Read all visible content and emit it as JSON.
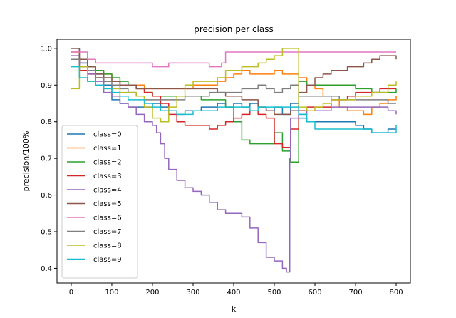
{
  "chart_data": {
    "type": "line",
    "title": "precision per class",
    "xlabel": "k",
    "ylabel": "precision/100%",
    "xlim": [
      -35,
      835
    ],
    "ylim": [
      0.36,
      1.025
    ],
    "xticks": [
      0,
      100,
      200,
      300,
      400,
      500,
      600,
      700,
      800
    ],
    "yticks": [
      0.4,
      0.5,
      0.6,
      0.7,
      0.8,
      0.9,
      1.0
    ],
    "xtick_labels": [
      "0",
      "100",
      "200",
      "300",
      "400",
      "500",
      "600",
      "700",
      "800"
    ],
    "ytick_labels": [
      "0.4",
      "0.5",
      "0.6",
      "0.7",
      "0.8",
      "0.9",
      "1.0"
    ],
    "grid": false,
    "legend_position": "center-left",
    "series": [
      {
        "name": "class=0",
        "color": "#1f77b4",
        "x": [
          0,
          20,
          40,
          60,
          80,
          100,
          120,
          140,
          160,
          180,
          200,
          220,
          240,
          260,
          280,
          300,
          320,
          340,
          360,
          380,
          400,
          420,
          440,
          460,
          480,
          500,
          520,
          540,
          560,
          580,
          600,
          620,
          640,
          660,
          680,
          700,
          720,
          740,
          760,
          780,
          800
        ],
        "y": [
          1.0,
          0.96,
          0.94,
          0.93,
          0.9,
          0.86,
          0.85,
          0.84,
          0.84,
          0.84,
          0.85,
          0.84,
          0.83,
          0.82,
          0.83,
          0.83,
          0.84,
          0.84,
          0.85,
          0.84,
          0.85,
          0.84,
          0.85,
          0.84,
          0.83,
          0.84,
          0.82,
          0.85,
          0.81,
          0.8,
          0.8,
          0.8,
          0.8,
          0.8,
          0.8,
          0.79,
          0.78,
          0.77,
          0.77,
          0.78,
          0.78
        ]
      },
      {
        "name": "class=1",
        "color": "#ff7f0e",
        "x": [
          0,
          20,
          40,
          60,
          80,
          100,
          120,
          140,
          160,
          180,
          200,
          220,
          240,
          260,
          280,
          300,
          320,
          340,
          360,
          380,
          400,
          420,
          440,
          460,
          480,
          500,
          520,
          540,
          560,
          580,
          600,
          620,
          640,
          660,
          680,
          700,
          720,
          740,
          760,
          780,
          800
        ],
        "y": [
          0.99,
          0.97,
          0.95,
          0.94,
          0.93,
          0.91,
          0.9,
          0.9,
          0.9,
          0.89,
          0.89,
          0.89,
          0.89,
          0.89,
          0.89,
          0.9,
          0.9,
          0.9,
          0.91,
          0.92,
          0.93,
          0.94,
          0.93,
          0.93,
          0.93,
          0.94,
          0.93,
          0.93,
          0.92,
          0.9,
          0.89,
          0.87,
          0.86,
          0.84,
          0.83,
          0.83,
          0.82,
          0.84,
          0.85,
          0.86,
          0.87
        ]
      },
      {
        "name": "class=2",
        "color": "#2ca02c",
        "x": [
          0,
          20,
          40,
          60,
          80,
          100,
          120,
          140,
          160,
          180,
          200,
          220,
          240,
          260,
          280,
          300,
          320,
          340,
          360,
          380,
          400,
          420,
          440,
          460,
          480,
          500,
          520,
          540,
          560,
          580,
          600,
          620,
          640,
          660,
          680,
          700,
          720,
          740,
          760,
          780,
          800
        ],
        "y": [
          0.97,
          0.95,
          0.95,
          0.94,
          0.93,
          0.92,
          0.91,
          0.9,
          0.89,
          0.88,
          0.87,
          0.87,
          0.87,
          0.87,
          0.87,
          0.87,
          0.86,
          0.86,
          0.86,
          0.84,
          0.8,
          0.75,
          0.74,
          0.74,
          0.74,
          0.77,
          0.72,
          0.69,
          0.91,
          0.9,
          0.9,
          0.9,
          0.9,
          0.9,
          0.9,
          0.89,
          0.89,
          0.88,
          0.88,
          0.88,
          0.89
        ]
      },
      {
        "name": "class=3",
        "color": "#d62728",
        "x": [
          0,
          20,
          40,
          60,
          80,
          100,
          120,
          140,
          160,
          180,
          200,
          220,
          240,
          260,
          280,
          300,
          320,
          340,
          360,
          380,
          400,
          420,
          440,
          460,
          480,
          500,
          520,
          540,
          560,
          580,
          600,
          620,
          640,
          660,
          680,
          700,
          720,
          740,
          760,
          780,
          800
        ],
        "y": [
          0.97,
          0.94,
          0.93,
          0.92,
          0.91,
          0.91,
          0.9,
          0.9,
          0.89,
          0.88,
          0.87,
          0.85,
          0.82,
          0.8,
          0.79,
          0.79,
          0.79,
          0.78,
          0.79,
          0.8,
          0.81,
          0.82,
          0.83,
          0.82,
          0.81,
          0.74,
          0.73,
          0.78,
          0.83,
          0.84,
          0.84,
          0.84,
          0.86,
          0.86,
          0.87,
          0.88,
          0.88,
          0.88,
          0.89,
          0.89,
          0.89
        ]
      },
      {
        "name": "class=4",
        "color": "#9467bd",
        "x": [
          0,
          20,
          40,
          60,
          80,
          100,
          120,
          140,
          160,
          180,
          200,
          210,
          220,
          230,
          240,
          260,
          280,
          300,
          320,
          340,
          360,
          380,
          400,
          420,
          440,
          460,
          480,
          500,
          520,
          530,
          536,
          538,
          540,
          560,
          580,
          600,
          620,
          640,
          660,
          680,
          700,
          720,
          740,
          760,
          780,
          800
        ],
        "y": [
          0.98,
          0.96,
          0.93,
          0.91,
          0.88,
          0.87,
          0.85,
          0.84,
          0.82,
          0.8,
          0.79,
          0.77,
          0.74,
          0.7,
          0.67,
          0.64,
          0.62,
          0.61,
          0.6,
          0.58,
          0.56,
          0.55,
          0.55,
          0.54,
          0.51,
          0.47,
          0.43,
          0.42,
          0.4,
          0.39,
          0.39,
          0.7,
          0.81,
          0.82,
          0.83,
          0.83,
          0.83,
          0.84,
          0.84,
          0.84,
          0.84,
          0.84,
          0.84,
          0.84,
          0.83,
          0.82
        ]
      },
      {
        "name": "class=5",
        "color": "#8c564b",
        "x": [
          0,
          20,
          40,
          60,
          80,
          100,
          120,
          140,
          160,
          180,
          200,
          220,
          240,
          260,
          280,
          300,
          320,
          340,
          360,
          380,
          400,
          420,
          440,
          460,
          480,
          500,
          520,
          540,
          560,
          580,
          600,
          620,
          640,
          660,
          680,
          700,
          720,
          740,
          760,
          780,
          800
        ],
        "y": [
          1.0,
          0.97,
          0.95,
          0.93,
          0.92,
          0.91,
          0.9,
          0.9,
          0.89,
          0.89,
          0.89,
          0.89,
          0.89,
          0.89,
          0.89,
          0.89,
          0.89,
          0.89,
          0.88,
          0.87,
          0.87,
          0.86,
          0.86,
          0.84,
          0.83,
          0.82,
          0.82,
          0.83,
          0.88,
          0.9,
          0.92,
          0.93,
          0.94,
          0.94,
          0.95,
          0.95,
          0.96,
          0.97,
          0.98,
          0.98,
          0.97
        ]
      },
      {
        "name": "class=6",
        "color": "#e377c2",
        "x": [
          0,
          20,
          40,
          60,
          80,
          100,
          120,
          140,
          160,
          180,
          200,
          220,
          240,
          260,
          280,
          300,
          320,
          340,
          360,
          370,
          380,
          400,
          420,
          440,
          460,
          480,
          500,
          520,
          540,
          560,
          580,
          600,
          620,
          640,
          660,
          680,
          700,
          720,
          740,
          760,
          780,
          800
        ],
        "y": [
          0.99,
          0.99,
          0.97,
          0.96,
          0.96,
          0.96,
          0.96,
          0.96,
          0.96,
          0.96,
          0.95,
          0.95,
          0.96,
          0.96,
          0.96,
          0.96,
          0.96,
          0.95,
          0.95,
          0.96,
          0.99,
          0.99,
          0.99,
          0.99,
          0.99,
          0.99,
          0.99,
          0.99,
          0.99,
          0.99,
          0.99,
          0.99,
          0.99,
          0.99,
          0.99,
          0.99,
          0.99,
          0.99,
          0.99,
          0.99,
          0.99,
          0.99
        ]
      },
      {
        "name": "class=7",
        "color": "#7f7f7f",
        "x": [
          0,
          20,
          40,
          60,
          80,
          100,
          120,
          140,
          160,
          180,
          200,
          220,
          240,
          260,
          280,
          300,
          320,
          340,
          360,
          380,
          400,
          420,
          440,
          460,
          480,
          500,
          520,
          540,
          560,
          580,
          600,
          620,
          640,
          660,
          680,
          700,
          720,
          740,
          760,
          780,
          800
        ],
        "y": [
          0.97,
          0.95,
          0.94,
          0.92,
          0.91,
          0.9,
          0.89,
          0.88,
          0.87,
          0.86,
          0.86,
          0.86,
          0.86,
          0.86,
          0.87,
          0.87,
          0.87,
          0.88,
          0.88,
          0.88,
          0.88,
          0.89,
          0.89,
          0.9,
          0.89,
          0.88,
          0.89,
          0.9,
          0.87,
          0.87,
          0.87,
          0.87,
          0.87,
          0.86,
          0.86,
          0.86,
          0.86,
          0.86,
          0.86,
          0.85,
          0.85
        ]
      },
      {
        "name": "class=8",
        "color": "#bcbd22",
        "x": [
          0,
          20,
          40,
          60,
          80,
          100,
          120,
          140,
          160,
          180,
          200,
          220,
          240,
          260,
          280,
          300,
          320,
          340,
          360,
          380,
          400,
          420,
          440,
          460,
          480,
          500,
          520,
          540,
          560,
          580,
          600,
          620,
          640,
          660,
          680,
          700,
          720,
          740,
          760,
          780,
          800
        ],
        "y": [
          0.89,
          0.95,
          0.91,
          0.9,
          0.89,
          0.89,
          0.88,
          0.88,
          0.87,
          0.84,
          0.81,
          0.8,
          0.84,
          0.87,
          0.9,
          0.91,
          0.91,
          0.91,
          0.92,
          0.94,
          0.94,
          0.95,
          0.95,
          0.96,
          0.97,
          0.98,
          1.0,
          1.0,
          0.84,
          0.83,
          0.84,
          0.85,
          0.86,
          0.86,
          0.86,
          0.87,
          0.87,
          0.88,
          0.88,
          0.9,
          0.91
        ]
      },
      {
        "name": "class=9",
        "color": "#17becf",
        "x": [
          0,
          20,
          40,
          60,
          80,
          100,
          120,
          140,
          160,
          180,
          200,
          220,
          240,
          260,
          280,
          300,
          320,
          340,
          360,
          380,
          400,
          420,
          440,
          460,
          480,
          500,
          520,
          540,
          560,
          580,
          600,
          620,
          640,
          660,
          680,
          700,
          720,
          740,
          760,
          780,
          800
        ],
        "y": [
          0.95,
          0.92,
          0.91,
          0.9,
          0.89,
          0.88,
          0.87,
          0.86,
          0.86,
          0.85,
          0.84,
          0.83,
          0.83,
          0.82,
          0.82,
          0.83,
          0.83,
          0.83,
          0.84,
          0.84,
          0.84,
          0.84,
          0.83,
          0.84,
          0.84,
          0.84,
          0.84,
          0.84,
          0.82,
          0.8,
          0.78,
          0.78,
          0.78,
          0.78,
          0.78,
          0.78,
          0.78,
          0.77,
          0.77,
          0.77,
          0.79
        ]
      }
    ]
  }
}
